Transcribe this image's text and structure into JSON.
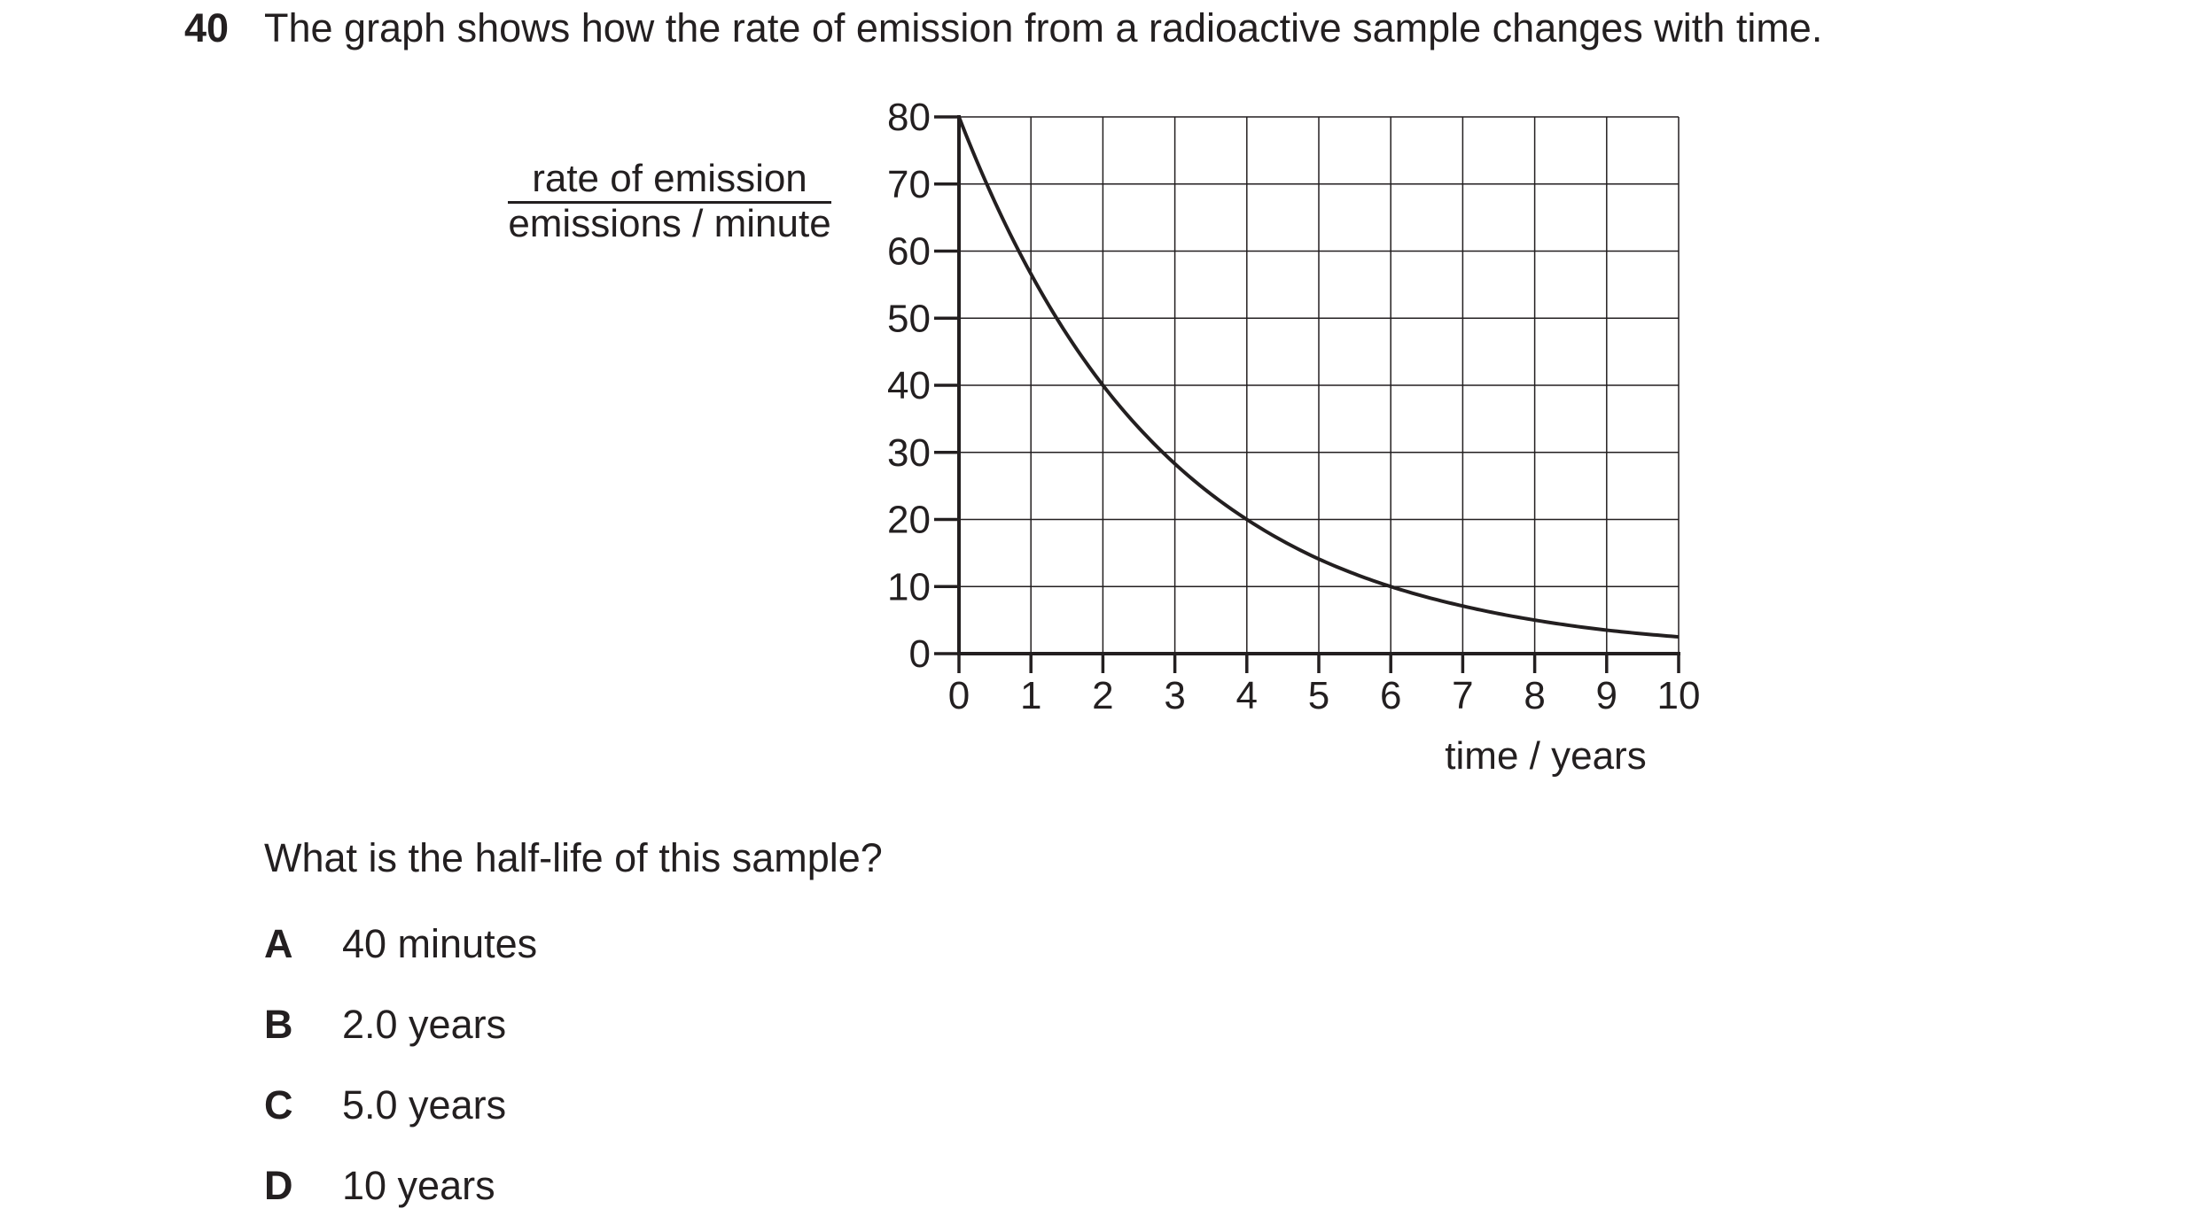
{
  "question": {
    "number": "40",
    "text": "The graph shows how the rate of emission from a radioactive sample changes with time.",
    "prompt": "What is the half-life of this sample?",
    "options": [
      {
        "letter": "A",
        "text": "40 minutes"
      },
      {
        "letter": "B",
        "text": "2.0 years"
      },
      {
        "letter": "C",
        "text": "5.0 years"
      },
      {
        "letter": "D",
        "text": "10 years"
      }
    ]
  },
  "chart_data": {
    "type": "line",
    "ylabel_quantity": "rate of emission",
    "ylabel_unit": "emissions / minute",
    "xlabel": "time / years",
    "xlim": [
      0,
      10
    ],
    "ylim": [
      0,
      80
    ],
    "xticks": [
      0,
      1,
      2,
      3,
      4,
      5,
      6,
      7,
      8,
      9,
      10
    ],
    "yticks": [
      0,
      10,
      20,
      30,
      40,
      50,
      60,
      70,
      80
    ],
    "grid": true,
    "x": [
      0,
      1,
      2,
      3,
      4,
      5,
      6,
      7,
      8,
      9,
      10
    ],
    "y": [
      80,
      56.6,
      40,
      28.3,
      20,
      14.1,
      10,
      7.1,
      5,
      3.5,
      2.5
    ]
  }
}
